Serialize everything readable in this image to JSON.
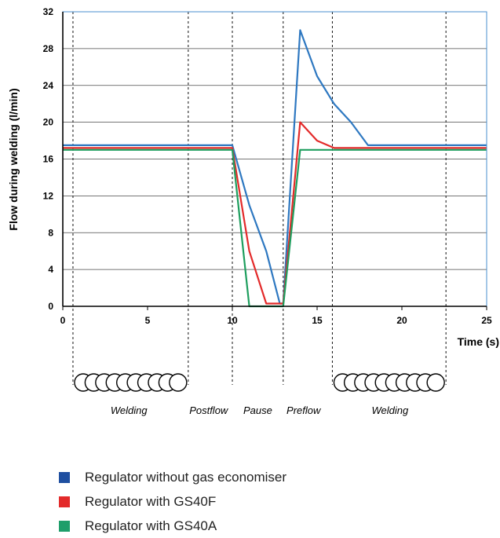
{
  "chart_data": {
    "type": "line",
    "xlabel": "Time (s)",
    "ylabel": "Flow during welding (l/min)",
    "xlim": [
      0,
      25
    ],
    "ylim": [
      0,
      32
    ],
    "x_ticks": [
      0,
      5,
      10,
      15,
      20,
      25
    ],
    "y_ticks": [
      0,
      4,
      8,
      12,
      16,
      20,
      24,
      28,
      32
    ],
    "grid": "horizontal",
    "series": [
      {
        "name": "Regulator without gas economiser",
        "color": "#2e78c1",
        "points": [
          [
            0,
            17.5
          ],
          [
            10,
            17.5
          ],
          [
            11,
            11
          ],
          [
            12,
            6
          ],
          [
            12.8,
            0.3
          ],
          [
            13,
            0.3
          ],
          [
            14,
            30
          ],
          [
            15,
            25
          ],
          [
            16,
            22
          ],
          [
            17,
            20
          ],
          [
            18,
            17.5
          ],
          [
            25,
            17.5
          ]
        ]
      },
      {
        "name": "Regulator with GS40F",
        "color": "#e32a2a",
        "points": [
          [
            0,
            17.2
          ],
          [
            10,
            17.2
          ],
          [
            11,
            6
          ],
          [
            12,
            0.3
          ],
          [
            13,
            0.3
          ],
          [
            14,
            20
          ],
          [
            15,
            18
          ],
          [
            16,
            17.2
          ],
          [
            25,
            17.2
          ]
        ]
      },
      {
        "name": "Regulator with GS40A",
        "color": "#1e9e5e",
        "points": [
          [
            0,
            17
          ],
          [
            10,
            17
          ],
          [
            11,
            0
          ],
          [
            13,
            0
          ],
          [
            14,
            17
          ],
          [
            25,
            17
          ]
        ]
      }
    ],
    "phase_boundaries": [
      0.6,
      7.4,
      10,
      13,
      15.9,
      22.6
    ],
    "phases": [
      {
        "label": "Welding",
        "x": 3.9
      },
      {
        "label": "Postflow",
        "x": 8.6
      },
      {
        "label": "Pause",
        "x": 11.5
      },
      {
        "label": "Preflow",
        "x": 14.2
      },
      {
        "label": "Welding",
        "x": 19.3
      }
    ],
    "weld_beads": [
      {
        "x_start": 0.6,
        "x_end": 7.4,
        "count": 10
      },
      {
        "x_start": 15.9,
        "x_end": 22.6,
        "count": 10
      }
    ]
  },
  "legend": {
    "items": [
      {
        "label": "Regulator without gas economiser",
        "color": "#1f4fa0"
      },
      {
        "label": "Regulator with GS40F",
        "color": "#e32a2a"
      },
      {
        "label": "Regulator with GS40A",
        "color": "#1e9e6a"
      }
    ]
  }
}
